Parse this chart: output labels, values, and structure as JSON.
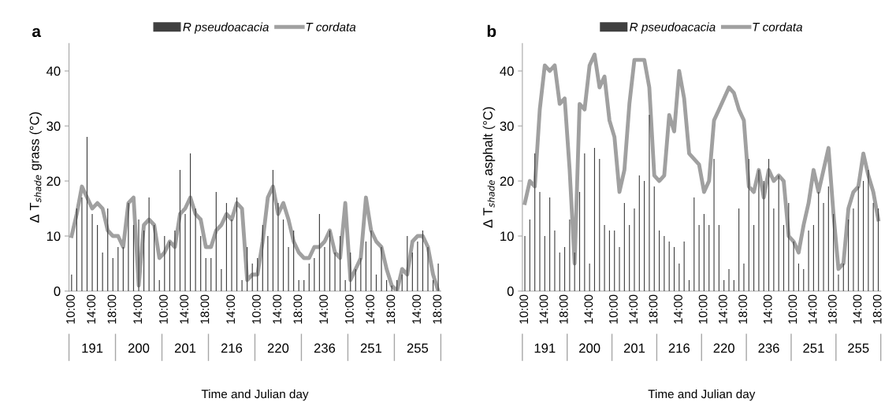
{
  "chart_data": [
    {
      "type": "bar",
      "title": "a",
      "xlabel": "Time and Julian day",
      "ylabel": "Δ T$_{shade}$ grass (°C)",
      "ylim": [
        0,
        45
      ],
      "yticks": [
        0,
        10,
        20,
        30,
        40
      ],
      "grid": false,
      "legend": "top",
      "categories": [
        "10:00",
        null,
        null,
        null,
        "14:00",
        null,
        null,
        null,
        "18:00",
        null,
        null,
        null,
        null,
        "14:00",
        null,
        null,
        null,
        null,
        "10:00",
        null,
        null,
        null,
        "14:00",
        null,
        null,
        null,
        "18:00",
        null,
        null,
        null,
        null,
        "14:00",
        null,
        null,
        null,
        null,
        "10:00",
        null,
        null,
        null,
        "14:00",
        null,
        null,
        null,
        "18:00",
        null,
        null,
        null,
        null,
        "14:00",
        null,
        null,
        null,
        null,
        "10:00",
        null,
        null,
        null,
        "14:00",
        null,
        null,
        null,
        "18:00",
        null,
        null,
        null,
        null,
        "14:00",
        null,
        null,
        null,
        "18:00"
      ],
      "annotations": [
        "191",
        "200",
        "201",
        "216",
        "220",
        "236",
        "251",
        "255"
      ],
      "series": [
        {
          "name": "R pseudoacacia",
          "color": "#404040",
          "values": [
            3,
            15,
            17,
            28,
            14,
            12,
            7,
            15,
            6,
            8,
            8,
            16,
            12,
            13,
            11,
            17,
            12,
            2,
            10,
            9,
            11,
            22,
            14,
            25,
            15,
            10,
            6,
            6,
            18,
            4,
            16,
            13,
            17,
            2,
            8,
            5,
            6,
            12,
            10,
            22,
            16,
            13,
            8,
            11,
            2,
            2,
            5,
            6,
            14,
            8,
            11,
            7,
            10,
            2,
            7,
            4,
            6,
            9,
            11,
            3,
            8,
            2,
            1,
            2,
            3,
            10,
            7,
            9,
            11,
            8,
            2,
            5
          ]
        },
        {
          "name": "T cordata",
          "type": "line",
          "color": "#a0a0a0",
          "values": [
            10,
            14,
            19,
            17,
            15,
            16,
            15,
            11,
            10,
            10,
            8,
            16,
            17,
            1,
            12,
            13,
            12,
            6,
            7,
            9,
            8,
            14,
            15,
            17,
            14,
            13,
            8,
            8,
            11,
            12,
            14,
            13,
            16,
            15,
            2,
            3,
            3,
            9,
            17,
            19,
            14,
            16,
            13,
            9,
            7,
            6,
            6,
            8,
            8,
            9,
            11,
            7,
            6,
            16,
            2,
            4,
            6,
            17,
            11,
            9,
            8,
            4,
            1,
            0,
            4,
            3,
            9,
            10,
            10,
            8,
            3,
            0
          ]
        }
      ]
    },
    {
      "type": "bar",
      "title": "b",
      "xlabel": "Time and Julian day",
      "ylabel": "Δ T$_{shade}$ asphalt (°C)",
      "ylim": [
        0,
        45
      ],
      "yticks": [
        0,
        10,
        20,
        30,
        40
      ],
      "grid": false,
      "legend": "top",
      "categories": [
        "10:00",
        null,
        null,
        null,
        "14:00",
        null,
        null,
        null,
        "18:00",
        null,
        null,
        null,
        null,
        "14:00",
        null,
        null,
        null,
        null,
        "10:00",
        null,
        null,
        null,
        "14:00",
        null,
        null,
        null,
        "18:00",
        null,
        null,
        null,
        null,
        "14:00",
        null,
        null,
        null,
        null,
        "10:00",
        null,
        null,
        null,
        "14:00",
        null,
        null,
        null,
        "18:00",
        null,
        null,
        null,
        null,
        "14:00",
        null,
        null,
        null,
        null,
        "10:00",
        null,
        null,
        null,
        "14:00",
        null,
        null,
        null,
        "18:00",
        null,
        null,
        null,
        null,
        "14:00",
        null,
        null,
        null,
        "18:00"
      ],
      "annotations": [
        "191",
        "200",
        "201",
        "216",
        "220",
        "236",
        "251",
        "255"
      ],
      "series": [
        {
          "name": "R pseudoacacia",
          "color": "#404040",
          "values": [
            10,
            13,
            25,
            18,
            10,
            17,
            11,
            7,
            8,
            13,
            7,
            18,
            25,
            5,
            26,
            24,
            12,
            11,
            11,
            8,
            16,
            12,
            15,
            21,
            20,
            32,
            19,
            11,
            10,
            9,
            8,
            5,
            9,
            2,
            17,
            12,
            14,
            12,
            24,
            12,
            2,
            4,
            2,
            15,
            5,
            24,
            12,
            22,
            20,
            24,
            15,
            21,
            12,
            16,
            9,
            5,
            4,
            11,
            12,
            18,
            16,
            19,
            14,
            3,
            5,
            13,
            15,
            19,
            20,
            22,
            16,
            15
          ]
        },
        {
          "name": "T cordata",
          "type": "line",
          "color": "#a0a0a0",
          "values": [
            16,
            20,
            19,
            33,
            41,
            40,
            41,
            34,
            35,
            22,
            5,
            34,
            33,
            41,
            43,
            37,
            39,
            31,
            28,
            18,
            22,
            34,
            42,
            42,
            42,
            37,
            21,
            20,
            21,
            32,
            29,
            40,
            35,
            25,
            24,
            23,
            18,
            20,
            31,
            33,
            35,
            37,
            36,
            33,
            31,
            19,
            18,
            22,
            17,
            22,
            20,
            21,
            20,
            10,
            9,
            7,
            12,
            16,
            22,
            18,
            22,
            26,
            14,
            4,
            5,
            15,
            18,
            19,
            25,
            21,
            18,
            13
          ]
        }
      ]
    }
  ]
}
